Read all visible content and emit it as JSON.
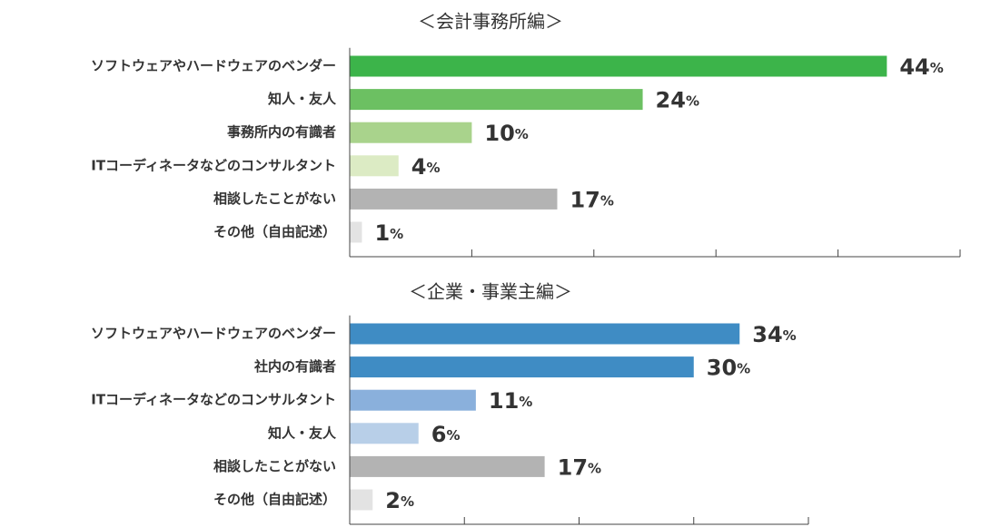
{
  "chart_data": [
    {
      "type": "bar",
      "orientation": "horizontal",
      "title": "＜会計事務所編＞",
      "categories": [
        "ソフトウェアやハードウェアのベンダー",
        "知人・友人",
        "事務所内の有識者",
        "ITコーディネータなどのコンサルタント",
        "相談したことがない",
        "その他（自由記述）"
      ],
      "values": [
        44,
        24,
        10,
        4,
        17,
        1
      ],
      "value_labels": [
        "44%",
        "24%",
        "10%",
        "4%",
        "17%",
        "1%"
      ],
      "colors": [
        "#3cb44a",
        "#6cc062",
        "#a9d38c",
        "#dcebc4",
        "#b3b3b3",
        "#e3e3e3"
      ],
      "xlim": [
        0,
        50
      ],
      "xticks": [
        0,
        10,
        20,
        30,
        40,
        50
      ]
    },
    {
      "type": "bar",
      "orientation": "horizontal",
      "title": "＜企業・事業主編＞",
      "categories": [
        "ソフトウェアやハードウェアのベンダー",
        "社内の有識者",
        "ITコーディネータなどのコンサルタント",
        "知人・友人",
        "相談したことがない",
        "その他（自由記述）"
      ],
      "values": [
        34,
        30,
        11,
        6,
        17,
        2
      ],
      "value_labels": [
        "34%",
        "30%",
        "11%",
        "6%",
        "17%",
        "2%"
      ],
      "colors": [
        "#3f8cc4",
        "#3f8cc4",
        "#8ab0dc",
        "#b8cfe8",
        "#b3b3b3",
        "#e3e3e3"
      ],
      "xlim": [
        0,
        40
      ],
      "xticks": [
        0,
        10,
        20,
        30,
        40
      ]
    }
  ]
}
